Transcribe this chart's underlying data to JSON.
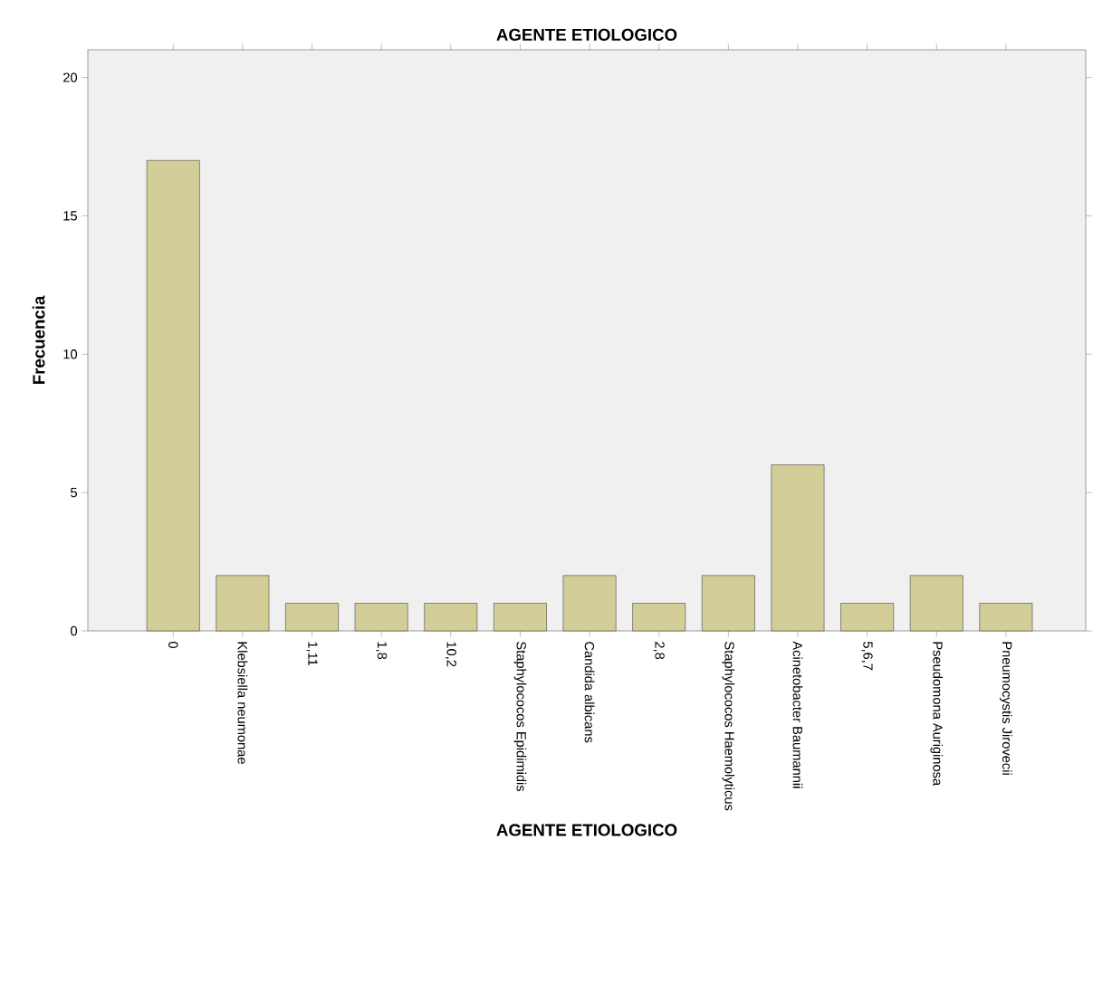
{
  "chart_data": {
    "type": "bar",
    "title": "AGENTE ETIOLOGICO",
    "xlabel": "AGENTE ETIOLOGICO",
    "ylabel": "Frecuencia",
    "categories": [
      "0",
      "Klebsiella neumonae",
      "1,11",
      "1,8",
      "10,2",
      "Staphylococos Epidimidis",
      "Candida albicans",
      "2,8",
      "Staphylococos Haemolyticus",
      "Acinetobacter Baumannii",
      "5,6,7",
      "Pseudomona Auriginosa",
      "Pneumocystis Jirovecii"
    ],
    "values": [
      17,
      2,
      1,
      1,
      1,
      1,
      2,
      1,
      2,
      6,
      1,
      2,
      1
    ],
    "color": "#d3ce98",
    "ylim": [
      0,
      21
    ],
    "yticks": [
      0,
      5,
      10,
      15,
      20
    ],
    "grid": false
  }
}
